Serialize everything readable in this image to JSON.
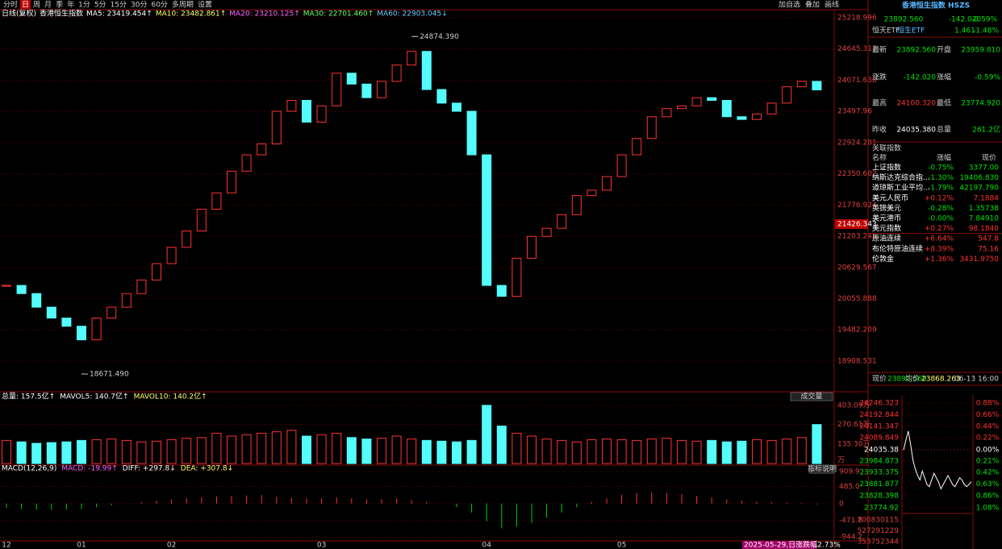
{
  "toolbar": {
    "periods": [
      "分时",
      "日",
      "周",
      "月",
      "季",
      "年",
      "1分",
      "5分",
      "15分",
      "30分",
      "60分",
      "多周期",
      "设置"
    ],
    "actions": [
      "加自选",
      "叠加",
      "画线"
    ]
  },
  "price_chart": {
    "legend": [
      {
        "text": "日线(复权)",
        "color": "#ffffff"
      },
      {
        "text": "香港恒生指数",
        "color": "#ffffff"
      },
      {
        "text": "MA5: 23419.454↑",
        "color": "#ffffff"
      },
      {
        "text": "MA10: 23482.861↑",
        "color": "#ffff66"
      },
      {
        "text": "MA20: 23210.125↑",
        "color": "#ff66ff"
      },
      {
        "text": "MA30: 22701.460↑",
        "color": "#66ff66"
      },
      {
        "text": "MA60: 22903.045↓",
        "color": "#66ccff"
      }
    ],
    "closes": [
      20300,
      20150,
      19900,
      19700,
      19550,
      19300,
      19700,
      19900,
      20150,
      20400,
      20700,
      21000,
      21300,
      21700,
      22000,
      22400,
      22700,
      22900,
      23500,
      23700,
      23300,
      23600,
      24200,
      24000,
      23750,
      24050,
      24350,
      24600,
      23900,
      23650,
      23500,
      22700,
      20300,
      20100,
      20800,
      21200,
      21350,
      21600,
      21950,
      22050,
      22300,
      22700,
      23000,
      23400,
      23550,
      23600,
      23750,
      23700,
      23400,
      23350,
      23450,
      23650,
      23950,
      24050,
      23892.56
    ],
    "dates": [
      "12",
      null,
      null,
      null,
      null,
      "01",
      null,
      null,
      null,
      null,
      null,
      "02",
      null,
      null,
      null,
      null,
      null,
      null,
      null,
      null,
      null,
      "03",
      null,
      null,
      null,
      null,
      null,
      null,
      null,
      null,
      null,
      null,
      "04",
      null,
      null,
      null,
      null,
      null,
      null,
      null,
      null,
      "05",
      null,
      null,
      null,
      null,
      null,
      null,
      null,
      null,
      null,
      null,
      null,
      null,
      null
    ],
    "ylim": [
      18360,
      25367
    ],
    "yticks": [
      25218.996,
      24645.317,
      24071.638,
      23497.96,
      22924.281,
      22350.602,
      21776.924,
      21203.245,
      20629.567,
      20055.888,
      19482.209,
      18908.531
    ],
    "high_label": {
      "value": 24874.39,
      "label": "24874.390"
    },
    "low_label": {
      "value": 18671.49,
      "label": "18671.490"
    },
    "cursor_price": 21426.343,
    "up_color": "#ff3232",
    "down_color": "#54fcfc",
    "status": "2025-05-29,日涨跌幅2.73%"
  },
  "volume_chart": {
    "legend": [
      {
        "text": "总量: 157.5亿↑",
        "color": "#ffffff"
      },
      {
        "text": "MAVOL5: 140.7亿↑",
        "color": "#ffffff"
      },
      {
        "text": "MAVOL10: 140.2亿↑",
        "color": "#ffff66"
      }
    ],
    "values": [
      160,
      150,
      140,
      145,
      150,
      160,
      165,
      170,
      160,
      150,
      155,
      165,
      175,
      180,
      210,
      190,
      200,
      210,
      220,
      230,
      190,
      200,
      210,
      180,
      170,
      175,
      190,
      170,
      160,
      155,
      150,
      160,
      403.09,
      260,
      210,
      190,
      170,
      160,
      150,
      165,
      170,
      165,
      160,
      170,
      175,
      160,
      155,
      160,
      150,
      155,
      165,
      160,
      170,
      180,
      270
    ],
    "ylim": [
      0,
      430
    ],
    "yticks": [
      {
        "value": 403.09,
        "label": "403.09万"
      },
      {
        "value": 270.61,
        "label": "270.61万"
      },
      {
        "value": 135.3,
        "label": "135.30万"
      }
    ],
    "unit": "万",
    "button": "成交量"
  },
  "macd_chart": {
    "legend": [
      {
        "text": "MACD(12,26,9)",
        "color": "#ffffff"
      },
      {
        "text": "MACD: -19.99↑",
        "color": "#ff66ff"
      },
      {
        "text": "DIFF: +297.8↓",
        "color": "#ffffff"
      },
      {
        "text": "DEA: +307.8↓",
        "color": "#ffff66"
      }
    ],
    "values": [
      -120,
      -150,
      -170,
      -180,
      -170,
      -150,
      -100,
      -50,
      0,
      40,
      80,
      120,
      150,
      180,
      200,
      220,
      230,
      240,
      200,
      170,
      150,
      160,
      180,
      150,
      120,
      130,
      150,
      100,
      50,
      0,
      -100,
      -250,
      -500,
      -700,
      -650,
      -550,
      -400,
      -250,
      -100,
      50,
      150,
      250,
      300,
      320,
      300,
      270,
      220,
      180,
      120,
      80,
      60,
      40,
      30,
      20,
      -19.99
    ],
    "ylim": [
      -1034,
      977
    ],
    "yticks": [
      909.9,
      {
        "value": 485,
        "label": "485.0"
      },
      0,
      -471.8,
      -944.2
    ],
    "button": "指标说明"
  },
  "quote": {
    "title": "香港恒生指数 HSZS",
    "price": "23892.560",
    "change": "-142.020",
    "pct": "-0.59%",
    "etf": [
      "恒天ETF",
      "恒生ETF"
    ],
    "etf_price": "1.461",
    "etf_pct": "-1.48%",
    "rows": [
      [
        "最新",
        "23892.560",
        "开盘",
        "23959.810"
      ],
      [
        "涨跌",
        "-142.020",
        "涨幅",
        "-0.59%"
      ],
      [
        "最高",
        "24100.320",
        "最低",
        "23774.920"
      ],
      [
        "昨收",
        "24035.380",
        "总量",
        "261.2亿"
      ]
    ]
  },
  "related": {
    "title": "关联指数",
    "header": [
      "名称",
      "涨幅",
      "现价"
    ],
    "rows": [
      [
        "上证指数",
        "-0.75%",
        "3377.00"
      ],
      [
        "纳斯达克综合指...",
        "-1.30%",
        "19406.830"
      ],
      [
        "道琼斯工业平均...",
        "-1.79%",
        "42197.790"
      ],
      [
        "美元人民币",
        "+0.12%",
        "7.1884"
      ],
      [
        "英镑美元",
        "-0.28%",
        "1.35738"
      ],
      [
        "美元港币",
        "-0.00%",
        "7.84910"
      ],
      [
        "美元指数",
        "+0.27%",
        "98.1840"
      ],
      [
        "原油连续",
        "+6.64%",
        "547.8"
      ],
      [
        "布伦特原油连续",
        "+8.39%",
        "75.16"
      ],
      [
        "伦敦金",
        "+1.36%",
        "3431.9750"
      ]
    ]
  },
  "minute": {
    "header": [
      "现价",
      "23892.560",
      "均价",
      "23868.263",
      "06-13 16:00"
    ],
    "values": [
      24035,
      24080,
      24120,
      24060,
      23990,
      23950,
      23920,
      23900,
      23940,
      23910,
      23880,
      23870,
      23900,
      23930,
      23910,
      23890,
      23860,
      23880,
      23900,
      23920,
      23900,
      23880,
      23870,
      23890,
      23910,
      23900,
      23880,
      23870,
      23880,
      23892.56
    ],
    "ylim": [
      23760,
      24282
    ],
    "yticks": [
      24246.323,
      24192.844,
      24141.347,
      24089.849,
      24035.38,
      23984.873,
      23933.375,
      23881.877,
      23828.398,
      23774.92
    ],
    "pct_labels": [
      "0.88%",
      "0.66%",
      "0.44%",
      "0.22%",
      "0.00%",
      "0.21%",
      "0.42%",
      "0.63%",
      "0.86%",
      "1.08%"
    ],
    "volume_labels": [
      "700830115",
      "527291229",
      "353752344"
    ]
  }
}
